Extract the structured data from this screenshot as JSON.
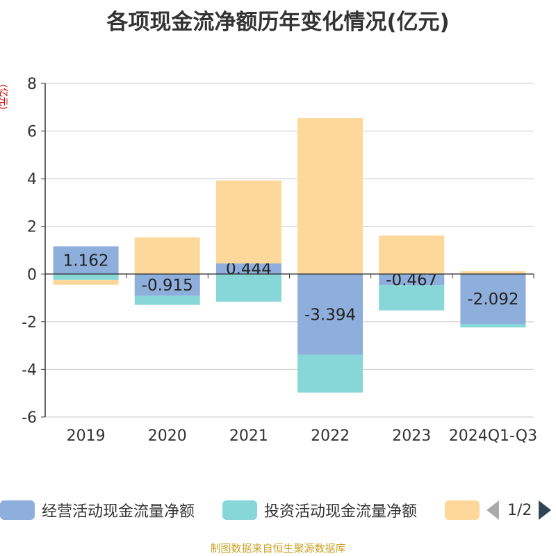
{
  "chart_data": {
    "type": "bar",
    "stacked": true,
    "title": "各项现金流净额历年变化情况(亿元)",
    "ylabel": "(亿元)",
    "xlabel": "",
    "categories": [
      "2019",
      "2020",
      "2021",
      "2022",
      "2023",
      "2024Q1-Q3"
    ],
    "ylim": [
      -6,
      8
    ],
    "yticks": [
      -6,
      -4,
      -2,
      0,
      2,
      4,
      6,
      8
    ],
    "series": [
      {
        "name": "经营活动现金流量净额",
        "color": "#8eaedb",
        "values": [
          1.162,
          -0.915,
          0.444,
          -3.394,
          -0.467,
          -2.092
        ],
        "labels": [
          "1.162",
          "-0.915",
          "0.444",
          "-3.394",
          "-0.467",
          "-2.092"
        ]
      },
      {
        "name": "投资活动现金流量净额",
        "color": "#87d6d8",
        "values": [
          -0.25,
          -0.38,
          -1.16,
          -1.58,
          -1.06,
          -0.15
        ]
      },
      {
        "name": "",
        "color": "#fdd89a",
        "values": [
          -0.2,
          1.54,
          3.48,
          6.54,
          1.62,
          0.12
        ]
      }
    ],
    "legend_position": "bottom"
  },
  "legend": {
    "items": [
      "经营活动现金流量净额",
      "投资活动现金流量净额",
      ""
    ],
    "page": "1/2"
  },
  "source": "制图数据来自恒生聚源数据库"
}
